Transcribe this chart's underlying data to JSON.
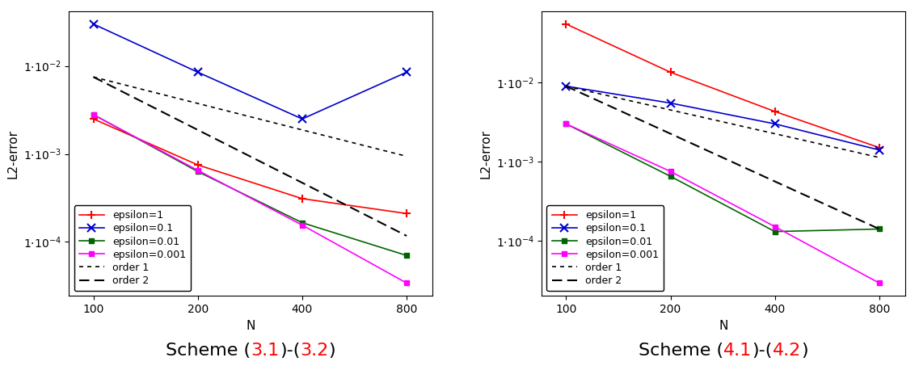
{
  "N": [
    100,
    200,
    400,
    800
  ],
  "scheme1": {
    "eps1": [
      0.0025,
      0.00075,
      0.00031,
      0.00021
    ],
    "eps01": [
      0.03,
      0.0085,
      0.0025,
      0.0085
    ],
    "eps001": [
      0.0028,
      0.00063,
      0.000165,
      7e-05
    ],
    "eps0001": [
      0.0028,
      0.00065,
      0.000155,
      3.4e-05
    ],
    "order1": [
      0.0075,
      0.00375,
      0.001875,
      0.00094
    ],
    "order2": [
      0.0075,
      0.001875,
      0.00047,
      0.000117
    ]
  },
  "scheme2": {
    "eps1": [
      0.055,
      0.0135,
      0.0043,
      0.0015
    ],
    "eps01": [
      0.009,
      0.0055,
      0.003,
      0.0014
    ],
    "eps001": [
      0.003,
      0.00065,
      0.00013,
      0.00014
    ],
    "eps0001": [
      0.003,
      0.00075,
      0.00015,
      2.9e-05
    ],
    "order1": [
      0.009,
      0.0045,
      0.00225,
      0.001125
    ],
    "order2": [
      0.009,
      0.00225,
      0.00056,
      0.00014
    ]
  },
  "xlabel": "N",
  "ylabel": "L2-error",
  "title1_parts": [
    [
      "Scheme (",
      "black"
    ],
    [
      "3.1",
      "red"
    ],
    [
      ")-(",
      "black"
    ],
    [
      "3.2",
      "red"
    ],
    [
      ")",
      "black"
    ]
  ],
  "title2_parts": [
    [
      "Scheme (",
      "black"
    ],
    [
      "4.1",
      "red"
    ],
    [
      ")-(",
      "black"
    ],
    [
      "4.2",
      "red"
    ],
    [
      ")",
      "black"
    ]
  ],
  "color_eps1": "#ff0000",
  "color_eps01": "#0000cc",
  "color_eps001": "#006400",
  "color_eps0001": "#ff00ff",
  "color_order": "#000000",
  "title_fontsize": 16,
  "label_fontsize": 11,
  "legend_fontsize": 9,
  "tick_fontsize": 10
}
